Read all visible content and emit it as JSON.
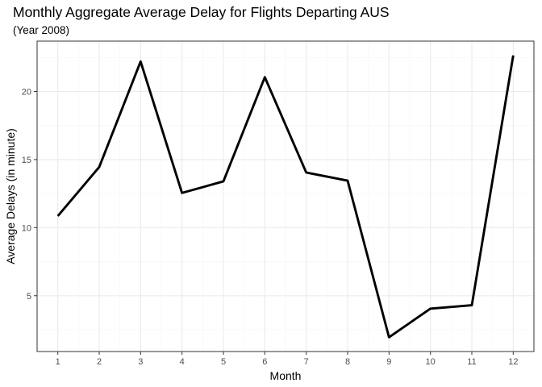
{
  "chart_data": {
    "type": "line",
    "title": "Monthly Aggregate Average Delay for Flights Departing AUS",
    "subtitle": "(Year 2008)",
    "xlabel": "Month",
    "ylabel": "Average Delays (in minute)",
    "x": [
      1,
      2,
      3,
      4,
      5,
      6,
      7,
      8,
      9,
      10,
      11,
      12
    ],
    "y": [
      10.85,
      14.45,
      22.2,
      12.55,
      13.4,
      21.05,
      14.05,
      13.45,
      1.95,
      4.05,
      4.3,
      22.65
    ],
    "xlim": [
      0.5,
      12.5
    ],
    "ylim": [
      0.9,
      23.7
    ],
    "x_ticks": [
      1,
      2,
      3,
      4,
      5,
      6,
      7,
      8,
      9,
      10,
      11,
      12
    ],
    "y_ticks": [
      5,
      10,
      15,
      20
    ],
    "x_tick_labels": [
      "1",
      "2",
      "3",
      "4",
      "5",
      "6",
      "7",
      "8",
      "9",
      "10",
      "11",
      "12"
    ],
    "y_tick_labels": [
      "5",
      "10",
      "15",
      "20"
    ],
    "grid": true,
    "legend": "none",
    "colors": {
      "line": "#000000",
      "grid_major": "#ebebeb",
      "grid_minor": "#f5f5f5",
      "panel_border": "#333333",
      "tick_label": "#4d4d4d"
    }
  }
}
